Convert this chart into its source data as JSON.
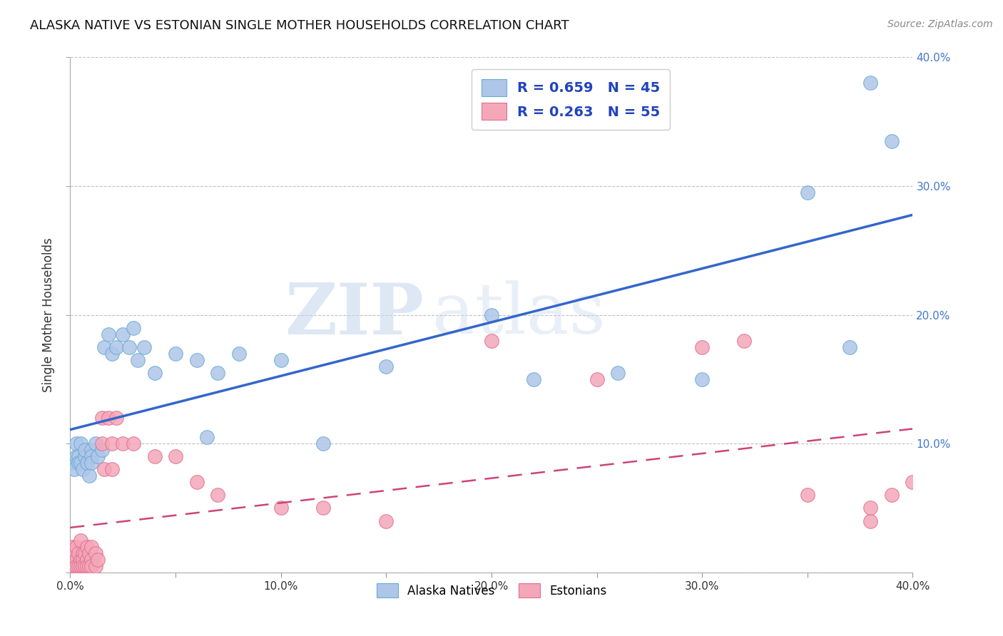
{
  "title": "ALASKA NATIVE VS ESTONIAN SINGLE MOTHER HOUSEHOLDS CORRELATION CHART",
  "source": "Source: ZipAtlas.com",
  "ylabel": "Single Mother Households",
  "xlim": [
    0.0,
    0.4
  ],
  "ylim": [
    0.0,
    0.4
  ],
  "xtick_vals": [
    0.0,
    0.05,
    0.1,
    0.15,
    0.2,
    0.25,
    0.3,
    0.35,
    0.4
  ],
  "xtick_major_vals": [
    0.0,
    0.1,
    0.2,
    0.3,
    0.4
  ],
  "ytick_vals": [
    0.0,
    0.1,
    0.2,
    0.3,
    0.4
  ],
  "alaska_color": "#aec6e8",
  "alaska_edge_color": "#6aaad4",
  "estonian_color": "#f4a7b9",
  "estonian_edge_color": "#e07090",
  "alaska_line_color": "#3366cc",
  "estonian_line_color": "#cc4477",
  "legend_R_color": "#2244bb",
  "R_alaska": 0.659,
  "N_alaska": 45,
  "R_estonian": 0.263,
  "N_estonian": 55,
  "watermark_zip": "ZIP",
  "watermark_atlas": "atlas",
  "alaska_scatter_x": [
    0.001,
    0.002,
    0.003,
    0.003,
    0.004,
    0.004,
    0.005,
    0.005,
    0.006,
    0.007,
    0.007,
    0.008,
    0.009,
    0.01,
    0.01,
    0.01,
    0.012,
    0.013,
    0.015,
    0.016,
    0.018,
    0.02,
    0.022,
    0.025,
    0.028,
    0.03,
    0.032,
    0.035,
    0.04,
    0.05,
    0.06,
    0.065,
    0.07,
    0.08,
    0.1,
    0.12,
    0.15,
    0.2,
    0.22,
    0.26,
    0.3,
    0.35,
    0.37,
    0.38,
    0.39
  ],
  "alaska_scatter_y": [
    0.085,
    0.08,
    0.09,
    0.1,
    0.09,
    0.085,
    0.1,
    0.085,
    0.08,
    0.09,
    0.095,
    0.085,
    0.075,
    0.095,
    0.09,
    0.085,
    0.1,
    0.09,
    0.095,
    0.175,
    0.185,
    0.17,
    0.175,
    0.185,
    0.175,
    0.19,
    0.165,
    0.175,
    0.155,
    0.17,
    0.165,
    0.105,
    0.155,
    0.17,
    0.165,
    0.1,
    0.16,
    0.2,
    0.15,
    0.155,
    0.15,
    0.295,
    0.175,
    0.38,
    0.335
  ],
  "estonian_scatter_x": [
    0.0,
    0.0,
    0.001,
    0.001,
    0.002,
    0.002,
    0.003,
    0.003,
    0.003,
    0.004,
    0.004,
    0.005,
    0.005,
    0.005,
    0.006,
    0.006,
    0.006,
    0.007,
    0.007,
    0.008,
    0.008,
    0.008,
    0.009,
    0.009,
    0.01,
    0.01,
    0.01,
    0.012,
    0.012,
    0.013,
    0.015,
    0.015,
    0.016,
    0.018,
    0.02,
    0.02,
    0.022,
    0.025,
    0.03,
    0.04,
    0.05,
    0.06,
    0.07,
    0.1,
    0.12,
    0.15,
    0.2,
    0.25,
    0.3,
    0.32,
    0.35,
    0.38,
    0.38,
    0.39,
    0.4
  ],
  "estonian_scatter_y": [
    0.01,
    0.005,
    0.02,
    0.01,
    0.015,
    0.005,
    0.02,
    0.01,
    0.005,
    0.015,
    0.005,
    0.025,
    0.01,
    0.005,
    0.015,
    0.01,
    0.005,
    0.015,
    0.005,
    0.02,
    0.01,
    0.005,
    0.015,
    0.005,
    0.02,
    0.01,
    0.005,
    0.015,
    0.005,
    0.01,
    0.12,
    0.1,
    0.08,
    0.12,
    0.1,
    0.08,
    0.12,
    0.1,
    0.1,
    0.09,
    0.09,
    0.07,
    0.06,
    0.05,
    0.05,
    0.04,
    0.18,
    0.15,
    0.175,
    0.18,
    0.06,
    0.04,
    0.05,
    0.06,
    0.07
  ],
  "background_color": "#ffffff",
  "grid_color": "#bbbbbb",
  "right_tick_color": "#4477cc"
}
